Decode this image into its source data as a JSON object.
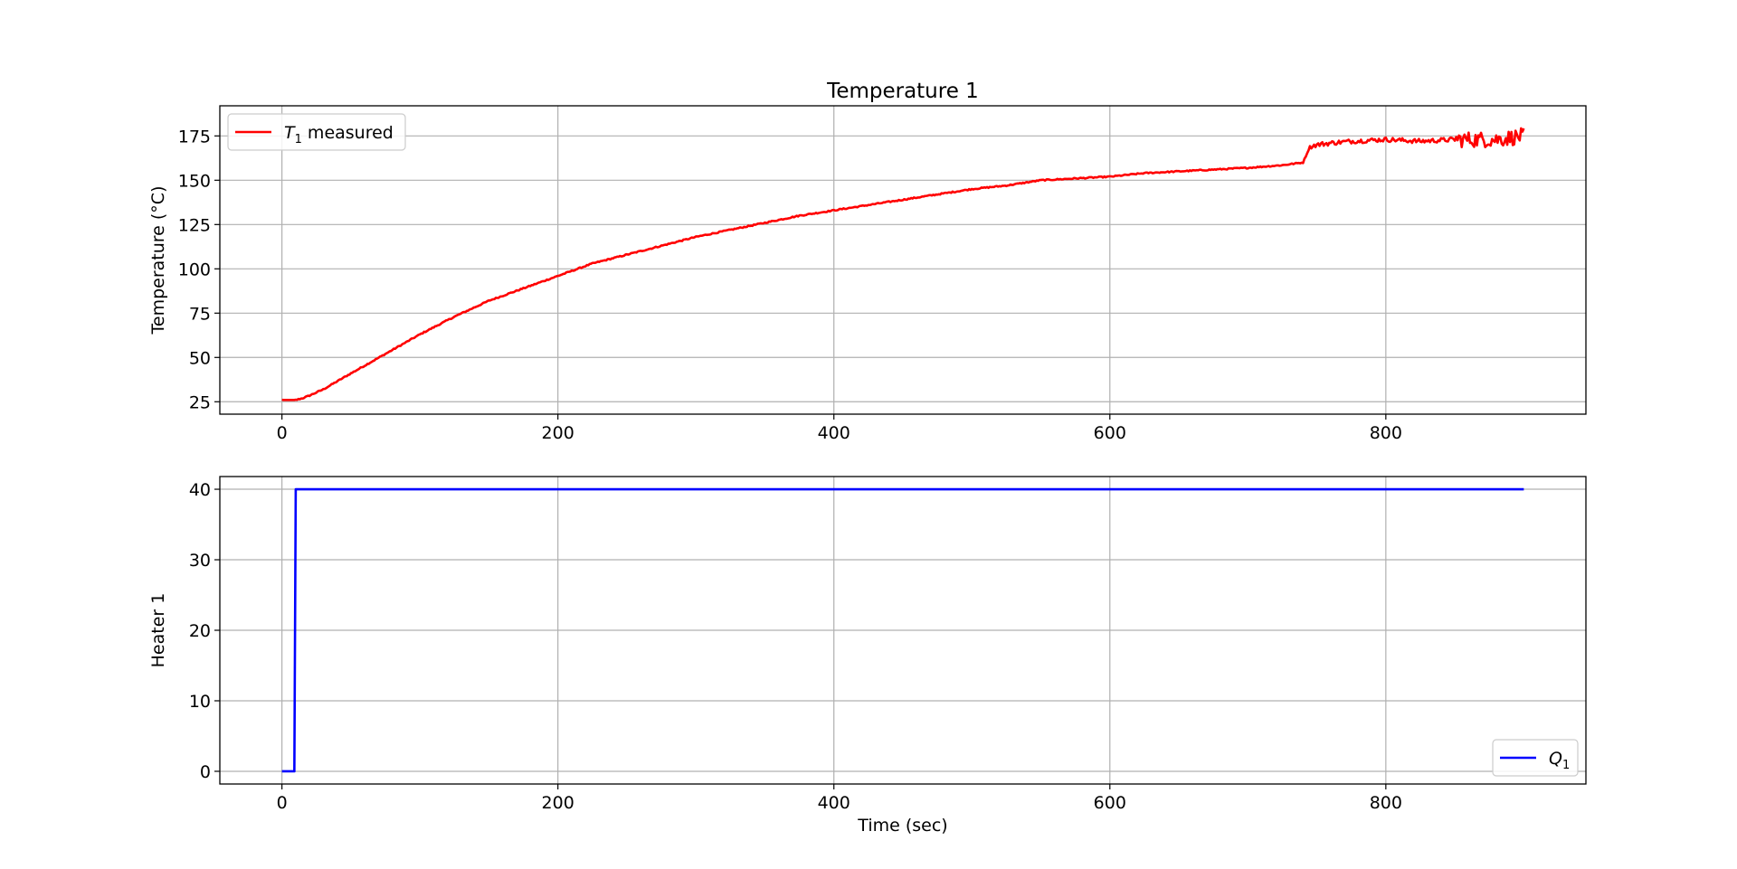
{
  "figure": {
    "background": "#ffffff"
  },
  "chart_data": [
    {
      "type": "line",
      "title": "Temperature 1",
      "xlabel": "",
      "ylabel": "Temperature (°C)",
      "xlim": [
        -45,
        945
      ],
      "ylim": [
        18,
        192
      ],
      "xticks": [
        0,
        200,
        400,
        600,
        800
      ],
      "yticks": [
        25,
        50,
        75,
        100,
        125,
        150,
        175
      ],
      "grid": true,
      "legend": {
        "placement": "upper-left",
        "entries": [
          {
            "base": "T",
            "sub": "1",
            "suffix": " measured",
            "color": "#ff0000"
          }
        ]
      },
      "series": [
        {
          "color": "#ff0000",
          "noise_after_x": 745,
          "x": [
            0,
            10,
            15,
            20,
            30,
            50,
            75,
            100,
            125,
            150,
            175,
            200,
            225,
            250,
            275,
            300,
            325,
            350,
            375,
            400,
            425,
            450,
            475,
            500,
            525,
            550,
            575,
            600,
            625,
            650,
            675,
            700,
            725,
            740,
            745,
            750,
            760,
            775,
            800,
            825,
            850,
            865,
            880,
            900
          ],
          "y": [
            26,
            26,
            27,
            28.5,
            32,
            41,
            52,
            63,
            73,
            82,
            89,
            96,
            103,
            108,
            113,
            118,
            122,
            126,
            130,
            133,
            136,
            139,
            142,
            145,
            147,
            150,
            151,
            152,
            154,
            155,
            156,
            157,
            158.5,
            160,
            169,
            170,
            171,
            172,
            173,
            172,
            173,
            173,
            173,
            175
          ]
        }
      ]
    },
    {
      "type": "line",
      "title": "",
      "xlabel": "Time (sec)",
      "ylabel": "Heater 1",
      "xlim": [
        -45,
        945
      ],
      "ylim": [
        -1.8,
        41.8
      ],
      "xticks": [
        0,
        200,
        400,
        600,
        800
      ],
      "yticks": [
        0,
        10,
        20,
        30,
        40
      ],
      "grid": true,
      "legend": {
        "placement": "lower-right",
        "entries": [
          {
            "base": "Q",
            "sub": "1",
            "suffix": "",
            "color": "#0000ff"
          }
        ]
      },
      "series": [
        {
          "color": "#0000ff",
          "x": [
            0,
            9,
            9,
            10,
            900
          ],
          "y": [
            0,
            0,
            0,
            40,
            40
          ]
        }
      ]
    }
  ]
}
